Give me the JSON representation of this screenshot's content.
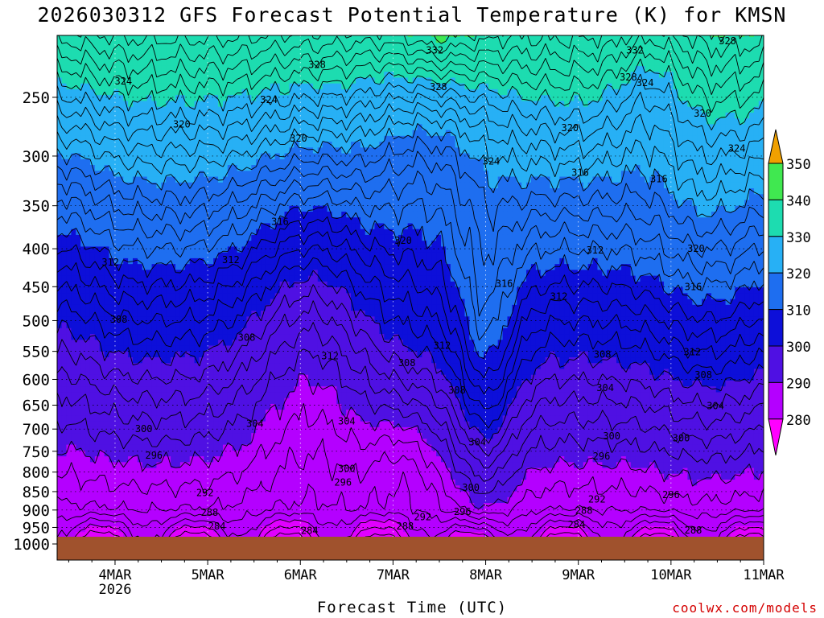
{
  "chart_data": {
    "type": "heatmap",
    "title": "2026030312 GFS Forecast Potential Temperature (K) for KMSN",
    "xlabel": "Forecast Time (UTC)",
    "ylabel": "",
    "x_ticks": [
      {
        "label": "4MAR",
        "sub": "2026",
        "day": 1
      },
      {
        "label": "5MAR",
        "sub": "",
        "day": 2
      },
      {
        "label": "6MAR",
        "sub": "",
        "day": 3
      },
      {
        "label": "7MAR",
        "sub": "",
        "day": 4
      },
      {
        "label": "8MAR",
        "sub": "",
        "day": 5
      },
      {
        "label": "9MAR",
        "sub": "",
        "day": 6
      },
      {
        "label": "10MAR",
        "sub": "",
        "day": 7
      },
      {
        "label": "11MAR",
        "sub": "",
        "day": 8
      }
    ],
    "xlim_days": [
      0.375,
      8
    ],
    "y_ticks": [
      250,
      300,
      350,
      400,
      450,
      500,
      550,
      600,
      650,
      700,
      750,
      800,
      850,
      900,
      950,
      1000
    ],
    "ylim": [
      200,
      1000
    ],
    "y_scale": "log-pressure",
    "colorbar": {
      "levels": [
        280,
        290,
        300,
        310,
        320,
        330,
        340,
        350
      ],
      "colors": [
        "#b400ff",
        "#4f10e3",
        "#0d0fd9",
        "#1e6ef0",
        "#27b0f5",
        "#1ddcb0",
        "#40e850",
        "#f0f020",
        "#f0a000",
        "#ff00ff"
      ]
    },
    "grid": true,
    "contour_interval": 2,
    "contour_labels": [
      {
        "t": 0.95,
        "p": 417,
        "v": "312"
      },
      {
        "t": 1.04,
        "p": 498,
        "v": "308"
      },
      {
        "t": 1.09,
        "p": 238,
        "v": "324"
      },
      {
        "t": 1.31,
        "p": 700,
        "v": "300"
      },
      {
        "t": 1.42,
        "p": 760,
        "v": "296"
      },
      {
        "t": 1.72,
        "p": 272,
        "v": "320"
      },
      {
        "t": 1.97,
        "p": 853,
        "v": "292"
      },
      {
        "t": 2.02,
        "p": 907,
        "v": "288"
      },
      {
        "t": 2.1,
        "p": 947,
        "v": "284"
      },
      {
        "t": 2.25,
        "p": 414,
        "v": "312"
      },
      {
        "t": 2.42,
        "p": 527,
        "v": "308"
      },
      {
        "t": 2.51,
        "p": 688,
        "v": "304"
      },
      {
        "t": 2.66,
        "p": 252,
        "v": "324"
      },
      {
        "t": 3.18,
        "p": 226,
        "v": "328"
      },
      {
        "t": 2.78,
        "p": 368,
        "v": "316"
      },
      {
        "t": 2.98,
        "p": 284,
        "v": "320"
      },
      {
        "t": 3.1,
        "p": 960,
        "v": "284"
      },
      {
        "t": 3.32,
        "p": 558,
        "v": "312"
      },
      {
        "t": 3.5,
        "p": 683,
        "v": "304"
      },
      {
        "t": 3.5,
        "p": 792,
        "v": "300"
      },
      {
        "t": 3.46,
        "p": 826,
        "v": "296"
      },
      {
        "t": 4.11,
        "p": 390,
        "v": "320"
      },
      {
        "t": 4.15,
        "p": 570,
        "v": "308"
      },
      {
        "t": 4.13,
        "p": 947,
        "v": "288"
      },
      {
        "t": 4.32,
        "p": 920,
        "v": "292"
      },
      {
        "t": 4.45,
        "p": 216,
        "v": "332"
      },
      {
        "t": 4.49,
        "p": 242,
        "v": "328"
      },
      {
        "t": 4.53,
        "p": 540,
        "v": "312"
      },
      {
        "t": 4.69,
        "p": 621,
        "v": "308"
      },
      {
        "t": 4.91,
        "p": 729,
        "v": "304"
      },
      {
        "t": 4.84,
        "p": 840,
        "v": "300"
      },
      {
        "t": 4.75,
        "p": 905,
        "v": "296"
      },
      {
        "t": 5.06,
        "p": 305,
        "v": "324"
      },
      {
        "t": 5.2,
        "p": 446,
        "v": "316"
      },
      {
        "t": 5.91,
        "p": 275,
        "v": "320"
      },
      {
        "t": 6.02,
        "p": 316,
        "v": "316"
      },
      {
        "t": 5.79,
        "p": 464,
        "v": "312"
      },
      {
        "t": 6.54,
        "p": 235,
        "v": "328"
      },
      {
        "t": 6.61,
        "p": 216,
        "v": "332"
      },
      {
        "t": 6.72,
        "p": 239,
        "v": "324"
      },
      {
        "t": 6.26,
        "p": 555,
        "v": "308"
      },
      {
        "t": 6.29,
        "p": 616,
        "v": "304"
      },
      {
        "t": 6.36,
        "p": 716,
        "v": "300"
      },
      {
        "t": 6.25,
        "p": 762,
        "v": "296"
      },
      {
        "t": 6.2,
        "p": 871,
        "v": "292"
      },
      {
        "t": 6.06,
        "p": 902,
        "v": "288"
      },
      {
        "t": 5.98,
        "p": 942,
        "v": "284"
      },
      {
        "t": 6.87,
        "p": 322,
        "v": "316"
      },
      {
        "t": 7.34,
        "p": 263,
        "v": "320"
      },
      {
        "t": 7.61,
        "p": 210,
        "v": "328"
      },
      {
        "t": 7.71,
        "p": 293,
        "v": "324"
      },
      {
        "t": 7.23,
        "p": 551,
        "v": "312"
      },
      {
        "t": 7.35,
        "p": 592,
        "v": "308"
      },
      {
        "t": 7.48,
        "p": 652,
        "v": "304"
      },
      {
        "t": 7.11,
        "p": 720,
        "v": "300"
      },
      {
        "t": 7.0,
        "p": 859,
        "v": "296"
      },
      {
        "t": 7.24,
        "p": 958,
        "v": "288"
      },
      {
        "t": 7.27,
        "p": 400,
        "v": "320"
      },
      {
        "t": 7.24,
        "p": 450,
        "v": "316"
      },
      {
        "t": 6.18,
        "p": 402,
        "v": "312"
      }
    ],
    "credit": "coolwx.com/models"
  }
}
